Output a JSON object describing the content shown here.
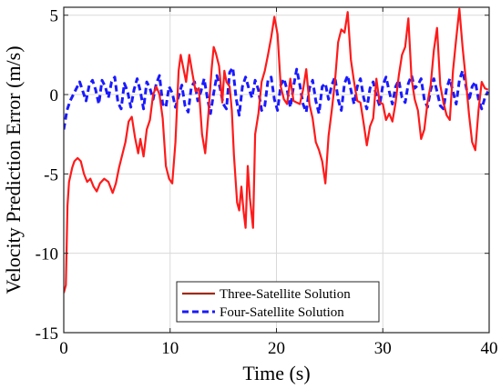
{
  "chart_data": {
    "type": "line",
    "title": "",
    "xlabel": "Time (s)",
    "ylabel": "Velocity Prediction Error (m/s)",
    "xlim": [
      0,
      40
    ],
    "ylim": [
      -15,
      5.5
    ],
    "x_ticks": [
      0,
      10,
      20,
      30,
      40
    ],
    "y_ticks": [
      -15,
      -10,
      -5,
      0,
      5
    ],
    "x_tick_labels": [
      "0",
      "10",
      "20",
      "30",
      "40"
    ],
    "y_tick_labels": [
      "-15",
      "-10",
      "-5",
      "0",
      "5"
    ],
    "grid": true,
    "legend_position": "bottom-center",
    "series": [
      {
        "name": "Three-Satellite Solution",
        "color": "#ff1a1a",
        "legend_color": "#9e2a12",
        "style": "solid",
        "points": [
          [
            0.0,
            -12.5
          ],
          [
            0.2,
            -12.0
          ],
          [
            0.35,
            -7.0
          ],
          [
            0.5,
            -5.5
          ],
          [
            0.8,
            -4.6
          ],
          [
            1.0,
            -4.2
          ],
          [
            1.3,
            -4.0
          ],
          [
            1.6,
            -4.2
          ],
          [
            1.9,
            -5.0
          ],
          [
            2.2,
            -5.5
          ],
          [
            2.5,
            -5.3
          ],
          [
            2.8,
            -5.8
          ],
          [
            3.1,
            -6.1
          ],
          [
            3.4,
            -5.6
          ],
          [
            3.8,
            -5.3
          ],
          [
            4.2,
            -5.5
          ],
          [
            4.6,
            -6.2
          ],
          [
            4.9,
            -5.6
          ],
          [
            5.2,
            -4.6
          ],
          [
            5.5,
            -3.8
          ],
          [
            5.8,
            -3.0
          ],
          [
            6.1,
            -1.7
          ],
          [
            6.4,
            -1.4
          ],
          [
            6.7,
            -2.7
          ],
          [
            7.0,
            -3.7
          ],
          [
            7.2,
            -2.8
          ],
          [
            7.5,
            -3.9
          ],
          [
            7.8,
            -2.2
          ],
          [
            8.1,
            -1.6
          ],
          [
            8.4,
            0.0
          ],
          [
            8.7,
            0.5
          ],
          [
            9.0,
            0.0
          ],
          [
            9.3,
            -1.5
          ],
          [
            9.6,
            -4.5
          ],
          [
            9.9,
            -5.3
          ],
          [
            10.2,
            -5.6
          ],
          [
            10.5,
            -3.0
          ],
          [
            10.8,
            1.5
          ],
          [
            11.0,
            2.5
          ],
          [
            11.2,
            1.8
          ],
          [
            11.5,
            0.8
          ],
          [
            11.8,
            2.5
          ],
          [
            12.1,
            1.3
          ],
          [
            12.4,
            0.2
          ],
          [
            12.7,
            0.4
          ],
          [
            13.0,
            -2.5
          ],
          [
            13.3,
            -3.7
          ],
          [
            13.6,
            -1.2
          ],
          [
            13.9,
            1.6
          ],
          [
            14.1,
            3.0
          ],
          [
            14.3,
            2.6
          ],
          [
            14.6,
            1.8
          ],
          [
            14.9,
            -0.5
          ],
          [
            15.1,
            1.5
          ],
          [
            15.3,
            0.8
          ],
          [
            15.6,
            0.5
          ],
          [
            15.8,
            -1.0
          ],
          [
            16.0,
            -3.8
          ],
          [
            16.3,
            -6.8
          ],
          [
            16.5,
            -7.3
          ],
          [
            16.7,
            -5.8
          ],
          [
            16.9,
            -7.3
          ],
          [
            17.1,
            -8.4
          ],
          [
            17.3,
            -4.5
          ],
          [
            17.5,
            -6.5
          ],
          [
            17.8,
            -8.4
          ],
          [
            18.0,
            -2.5
          ],
          [
            18.3,
            -1.2
          ],
          [
            18.6,
            0.8
          ],
          [
            18.9,
            1.5
          ],
          [
            19.2,
            2.5
          ],
          [
            19.5,
            3.6
          ],
          [
            19.8,
            4.9
          ],
          [
            20.1,
            3.8
          ],
          [
            20.4,
            0.5
          ],
          [
            20.7,
            -0.3
          ],
          [
            21.0,
            -0.6
          ],
          [
            21.3,
            1.0
          ],
          [
            21.6,
            -0.4
          ],
          [
            21.9,
            -0.5
          ],
          [
            22.2,
            -0.6
          ],
          [
            22.5,
            0.3
          ],
          [
            22.8,
            1.6
          ],
          [
            23.1,
            -0.6
          ],
          [
            23.4,
            -1.5
          ],
          [
            23.7,
            -3.0
          ],
          [
            24.0,
            -3.5
          ],
          [
            24.3,
            -4.2
          ],
          [
            24.6,
            -5.6
          ],
          [
            24.9,
            -2.6
          ],
          [
            25.2,
            -1.0
          ],
          [
            25.5,
            0.8
          ],
          [
            25.8,
            3.3
          ],
          [
            26.1,
            4.1
          ],
          [
            26.4,
            3.9
          ],
          [
            26.7,
            5.2
          ],
          [
            27.0,
            2.2
          ],
          [
            27.3,
            0.8
          ],
          [
            27.6,
            -0.4
          ],
          [
            27.9,
            -0.5
          ],
          [
            28.2,
            -1.8
          ],
          [
            28.5,
            -3.2
          ],
          [
            28.8,
            -2.0
          ],
          [
            29.1,
            -1.5
          ],
          [
            29.4,
            1.0
          ],
          [
            29.7,
            -0.5
          ],
          [
            30.0,
            -0.6
          ],
          [
            30.3,
            -1.6
          ],
          [
            30.6,
            -1.2
          ],
          [
            30.9,
            -1.7
          ],
          [
            31.2,
            -0.5
          ],
          [
            31.5,
            1.2
          ],
          [
            31.8,
            2.5
          ],
          [
            32.1,
            3.0
          ],
          [
            32.4,
            4.8
          ],
          [
            32.7,
            1.0
          ],
          [
            33.0,
            -0.3
          ],
          [
            33.3,
            -1.0
          ],
          [
            33.6,
            -2.8
          ],
          [
            33.9,
            -2.2
          ],
          [
            34.2,
            -0.5
          ],
          [
            34.5,
            0.6
          ],
          [
            34.8,
            2.8
          ],
          [
            35.1,
            4.2
          ],
          [
            35.4,
            0.6
          ],
          [
            35.7,
            -0.5
          ],
          [
            36.0,
            -1.3
          ],
          [
            36.3,
            -1.6
          ],
          [
            36.6,
            1.5
          ],
          [
            36.9,
            3.5
          ],
          [
            37.2,
            5.4
          ],
          [
            37.5,
            3.0
          ],
          [
            37.8,
            1.0
          ],
          [
            38.1,
            -1.2
          ],
          [
            38.4,
            -3.0
          ],
          [
            38.7,
            -3.5
          ],
          [
            39.0,
            -1.0
          ],
          [
            39.3,
            0.8
          ],
          [
            39.6,
            0.4
          ],
          [
            39.9,
            0.3
          ]
        ]
      },
      {
        "name": "Four-Satellite Solution",
        "color": "#1a1aff",
        "legend_color": "#1a1aff",
        "style": "dashed",
        "points": [
          [
            0.0,
            -2.2
          ],
          [
            0.3,
            -1.0
          ],
          [
            0.6,
            -0.4
          ],
          [
            0.9,
            0.0
          ],
          [
            1.2,
            0.4
          ],
          [
            1.5,
            0.8
          ],
          [
            1.8,
            0.2
          ],
          [
            2.1,
            -0.4
          ],
          [
            2.4,
            0.6
          ],
          [
            2.7,
            0.9
          ],
          [
            3.0,
            0.3
          ],
          [
            3.3,
            -0.6
          ],
          [
            3.6,
            0.9
          ],
          [
            3.9,
            0.5
          ],
          [
            4.2,
            -0.2
          ],
          [
            4.5,
            0.8
          ],
          [
            4.8,
            1.1
          ],
          [
            5.1,
            -0.5
          ],
          [
            5.4,
            -0.9
          ],
          [
            5.7,
            0.7
          ],
          [
            6.0,
            0.2
          ],
          [
            6.3,
            -0.8
          ],
          [
            6.6,
            0.3
          ],
          [
            6.9,
            1.0
          ],
          [
            7.2,
            0.2
          ],
          [
            7.5,
            -0.9
          ],
          [
            7.8,
            0.8
          ],
          [
            8.1,
            0.4
          ],
          [
            8.4,
            -0.3
          ],
          [
            8.7,
            0.7
          ],
          [
            9.0,
            1.2
          ],
          [
            9.3,
            -0.6
          ],
          [
            9.6,
            -0.8
          ],
          [
            9.9,
            0.5
          ],
          [
            10.2,
            0.1
          ],
          [
            10.5,
            -0.8
          ],
          [
            10.8,
            -0.1
          ],
          [
            11.1,
            0.6
          ],
          [
            11.4,
            -0.7
          ],
          [
            11.7,
            -1.1
          ],
          [
            12.0,
            0.5
          ],
          [
            12.3,
            0.8
          ],
          [
            12.6,
            -0.4
          ],
          [
            12.9,
            0.2
          ],
          [
            13.2,
            1.0
          ],
          [
            13.5,
            -0.2
          ],
          [
            13.8,
            -1.2
          ],
          [
            14.1,
            0.1
          ],
          [
            14.4,
            1.2
          ],
          [
            14.7,
            0.4
          ],
          [
            15.0,
            -0.6
          ],
          [
            15.3,
            -0.9
          ],
          [
            15.6,
            1.4
          ],
          [
            15.9,
            1.7
          ],
          [
            16.2,
            -0.2
          ],
          [
            16.5,
            -1.3
          ],
          [
            16.8,
            0.5
          ],
          [
            17.1,
            1.1
          ],
          [
            17.4,
            0.4
          ],
          [
            17.7,
            -0.2
          ],
          [
            18.0,
            0.9
          ],
          [
            18.3,
            0.3
          ],
          [
            18.6,
            -1.0
          ],
          [
            18.9,
            -0.7
          ],
          [
            19.2,
            0.9
          ],
          [
            19.5,
            1.1
          ],
          [
            19.8,
            -0.3
          ],
          [
            20.1,
            -1.0
          ],
          [
            20.4,
            0.6
          ],
          [
            20.7,
            1.0
          ],
          [
            21.0,
            0.3
          ],
          [
            21.3,
            -0.8
          ],
          [
            21.6,
            0.5
          ],
          [
            21.9,
            1.6
          ],
          [
            22.2,
            0.6
          ],
          [
            22.5,
            -0.6
          ],
          [
            22.8,
            -1.1
          ],
          [
            23.1,
            0.4
          ],
          [
            23.4,
            0.9
          ],
          [
            23.7,
            -0.4
          ],
          [
            24.0,
            -1.2
          ],
          [
            24.3,
            0.5
          ],
          [
            24.6,
            0.7
          ],
          [
            24.9,
            -0.3
          ],
          [
            25.2,
            0.6
          ],
          [
            25.5,
            1.1
          ],
          [
            25.8,
            -0.3
          ],
          [
            26.1,
            -1.0
          ],
          [
            26.4,
            0.7
          ],
          [
            26.7,
            1.2
          ],
          [
            27.0,
            0.3
          ],
          [
            27.3,
            -0.6
          ],
          [
            27.6,
            0.5
          ],
          [
            27.9,
            1.0
          ],
          [
            28.2,
            -0.2
          ],
          [
            28.5,
            -0.9
          ],
          [
            28.8,
            0.4
          ],
          [
            29.1,
            0.8
          ],
          [
            29.4,
            -0.1
          ],
          [
            29.7,
            -0.7
          ],
          [
            30.0,
            0.6
          ],
          [
            30.3,
            1.1
          ],
          [
            30.6,
            0.2
          ],
          [
            30.9,
            -0.6
          ],
          [
            31.2,
            0.5
          ],
          [
            31.5,
            0.9
          ],
          [
            31.8,
            -0.2
          ],
          [
            32.1,
            -0.5
          ],
          [
            32.4,
            0.7
          ],
          [
            32.7,
            1.2
          ],
          [
            33.0,
            0.4
          ],
          [
            33.3,
            0.6
          ],
          [
            33.6,
            1.0
          ],
          [
            33.9,
            -0.3
          ],
          [
            34.2,
            -0.8
          ],
          [
            34.5,
            0.3
          ],
          [
            34.8,
            1.0
          ],
          [
            35.1,
            0.2
          ],
          [
            35.4,
            -0.7
          ],
          [
            35.7,
            -0.9
          ],
          [
            36.0,
            0.4
          ],
          [
            36.3,
            1.0
          ],
          [
            36.6,
            0.2
          ],
          [
            36.9,
            -0.6
          ],
          [
            37.2,
            0.9
          ],
          [
            37.5,
            1.5
          ],
          [
            37.8,
            0.6
          ],
          [
            38.1,
            -0.4
          ],
          [
            38.4,
            0.5
          ],
          [
            38.7,
            0.8
          ],
          [
            39.0,
            -0.3
          ],
          [
            39.3,
            -0.9
          ],
          [
            39.6,
            -0.2
          ],
          [
            39.9,
            0.2
          ]
        ]
      }
    ]
  }
}
